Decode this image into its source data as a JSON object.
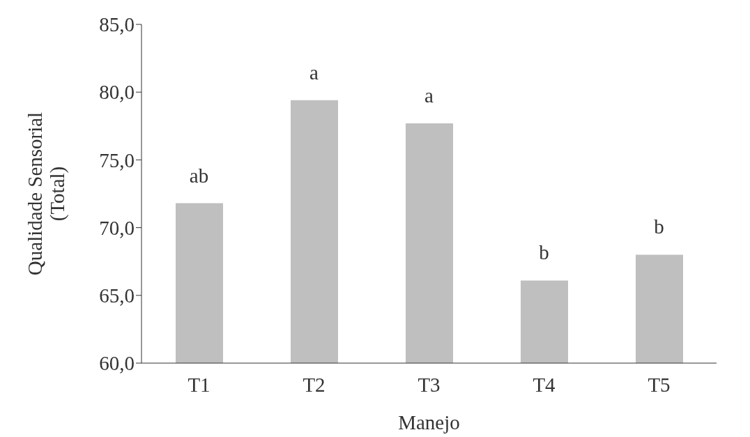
{
  "chart_data": {
    "type": "bar",
    "xlabel": "Manejo",
    "ylabel": "Qualidade Sensorial\n(Total)",
    "categories": [
      "T1",
      "T2",
      "T3",
      "T4",
      "T5"
    ],
    "values": [
      71.8,
      79.4,
      77.7,
      66.1,
      68.0
    ],
    "color": "#bfbfbf",
    "ylim": [
      60,
      85
    ],
    "yticks": [
      {
        "value": 60,
        "label": "60,0"
      },
      {
        "value": 65,
        "label": "65,0"
      },
      {
        "value": 70,
        "label": "70,0"
      },
      {
        "value": 75,
        "label": "75,0"
      },
      {
        "value": 80,
        "label": "80,0"
      },
      {
        "value": 85,
        "label": "85,0"
      }
    ],
    "grid": false,
    "legend": false,
    "annotations": [
      {
        "text": "ab",
        "x": "T1",
        "y": 71.8
      },
      {
        "text": "a",
        "x": "T2",
        "y": 79.4
      },
      {
        "text": "a",
        "x": "T3",
        "y": 77.7
      },
      {
        "text": "b",
        "x": "T4",
        "y": 66.1
      },
      {
        "text": "b",
        "x": "T5",
        "y": 68.0
      }
    ]
  }
}
